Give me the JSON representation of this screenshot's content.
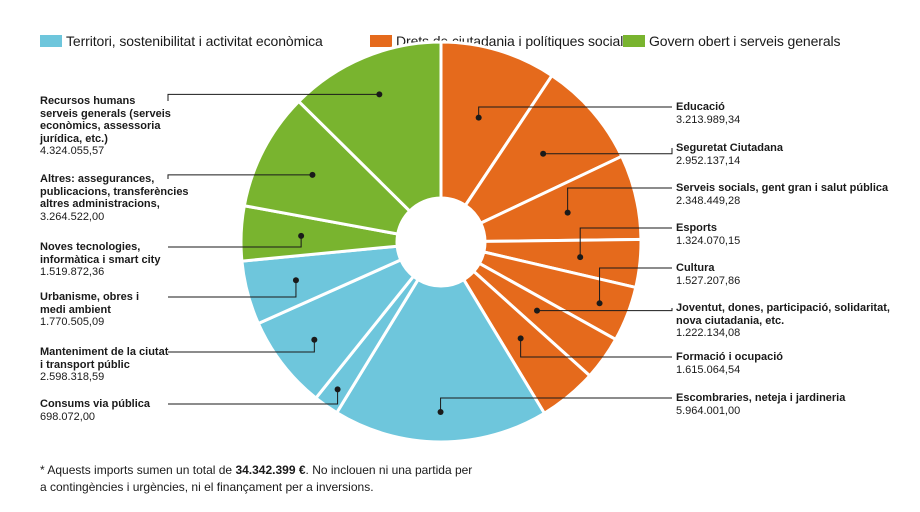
{
  "legend": [
    {
      "label": "Territori, sostenibilitat i activitat econòmica",
      "color": "#6ec6dc"
    },
    {
      "label": "Drets de ciutadania i polítiques socials",
      "color": "#e56a1c"
    },
    {
      "label": "Govern obert i serveis generals",
      "color": "#79b42f"
    }
  ],
  "chart_data": {
    "type": "pie",
    "variant": "donut",
    "slices": [
      {
        "label": "Educació",
        "value": 3213989.34,
        "value_text": "3.213.989,34",
        "group": 1
      },
      {
        "label": "Seguretat Ciutadana",
        "value": 2952137.14,
        "value_text": "2.952.137,14",
        "group": 1
      },
      {
        "label": "Serveis socials, gent gran i salut pública",
        "value": 2348449.28,
        "value_text": "2.348.449,28",
        "group": 1
      },
      {
        "label": "Esports",
        "value": 1324070.15,
        "value_text": "1.324.070,15",
        "group": 1
      },
      {
        "label": "Cultura",
        "value": 1527207.86,
        "value_text": "1.527.207,86",
        "group": 1
      },
      {
        "label": "Joventut, dones, participació, solidaritat,\nnova ciutadania, etc.",
        "value": 1222134.08,
        "value_text": "1.222.134,08",
        "group": 1
      },
      {
        "label": "Formació i ocupació",
        "value": 1615064.54,
        "value_text": "1.615.064,54",
        "group": 1
      },
      {
        "label": "Escombraries, neteja i jardineria",
        "value": 5964001.0,
        "value_text": "5.964.001,00",
        "group": 0
      },
      {
        "label": "Consums via pública",
        "value": 698072.0,
        "value_text": "698.072,00",
        "group": 0
      },
      {
        "label": "Manteniment de la ciutat\ni transport públic",
        "value": 2598318.59,
        "value_text": "2.598.318,59",
        "group": 0
      },
      {
        "label": "Urbanisme, obres i\nmedi ambient",
        "value": 1770505.09,
        "value_text": "1.770.505,09",
        "group": 0
      },
      {
        "label": "Noves tecnologies,\ninformàtica i smart city",
        "value": 1519872.36,
        "value_text": "1.519.872,36",
        "group": 2
      },
      {
        "label": "Altres: assegurances,\npublicacions, transferències\naltres administracions,",
        "value": 3264522.0,
        "value_text": "3.264.522,00",
        "group": 2
      },
      {
        "label": "Recursos humans\nserveis generals (serveis\neconòmics, assessoria\njurídica, etc.)",
        "value": 4324055.57,
        "value_text": "4.324.055,57",
        "group": 2
      }
    ]
  },
  "footnote": {
    "prefix": "* Aquests imports sumen un total de ",
    "total": "34.342.399 €",
    "suffix": ". No inclouen ni una partida per a contingències i urgències, ni el finançament per a inversions."
  }
}
